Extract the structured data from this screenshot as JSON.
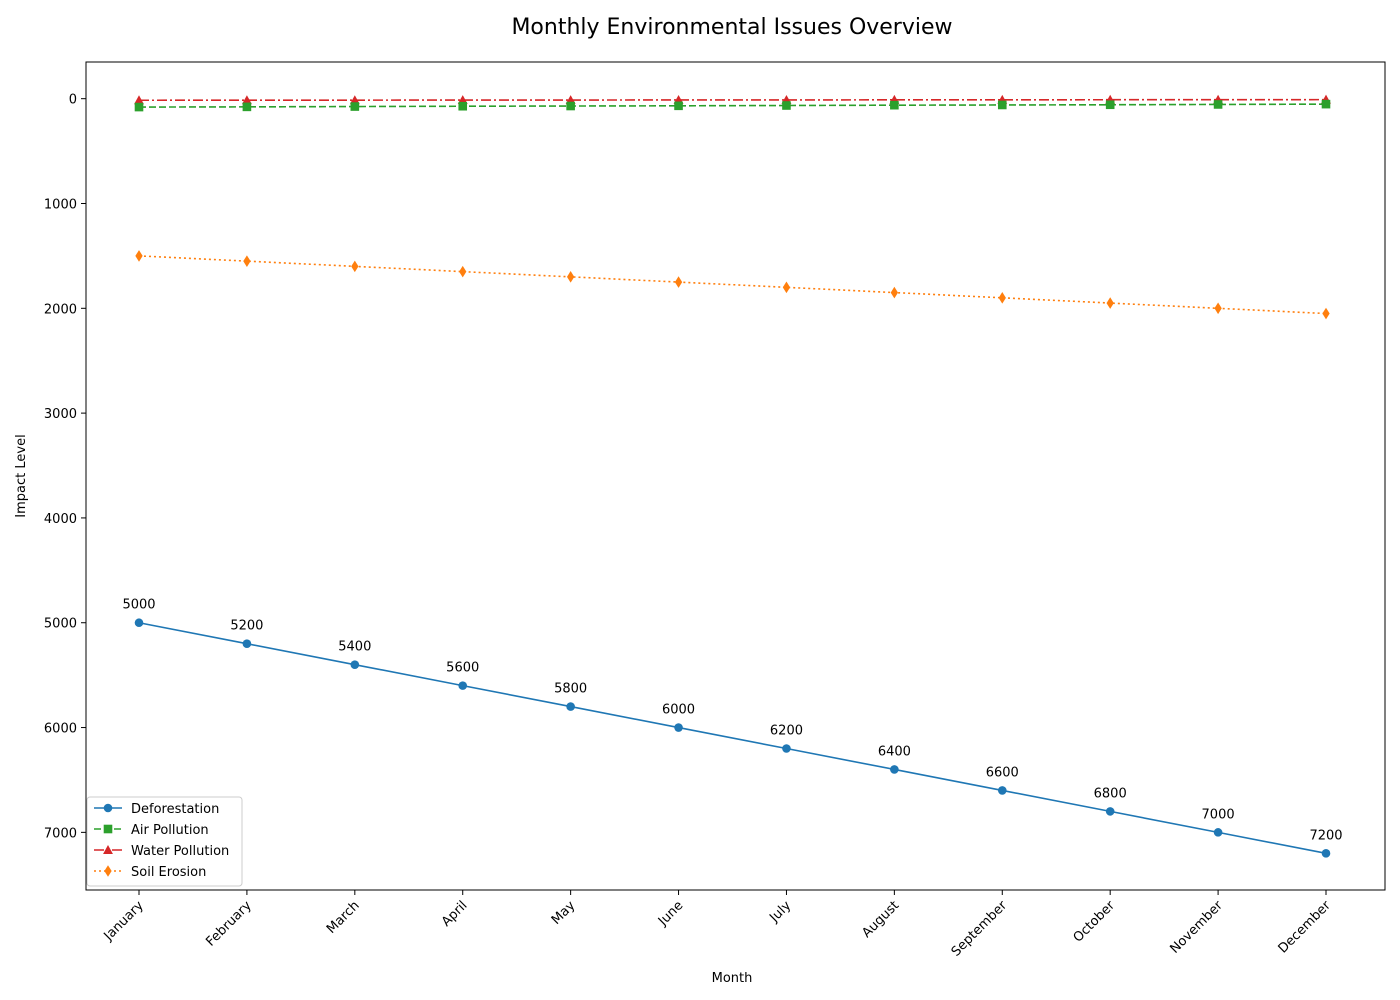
{
  "chart_data": {
    "type": "line",
    "title": "Monthly Environmental Issues Overview",
    "xlabel": "Month",
    "ylabel": "Impact Level",
    "categories": [
      "January",
      "February",
      "March",
      "April",
      "May",
      "June",
      "July",
      "August",
      "September",
      "October",
      "November",
      "December"
    ],
    "y_inverted": true,
    "ylim": [
      -350,
      7550
    ],
    "yticks": [
      0,
      1000,
      2000,
      3000,
      4000,
      5000,
      6000,
      7000
    ],
    "grid": false,
    "legend_position": "lower-left",
    "series": [
      {
        "name": "Deforestation",
        "color": "#1f77b4",
        "linestyle": "solid",
        "marker": "circle",
        "values": [
          5000,
          5200,
          5400,
          5600,
          5800,
          6000,
          6200,
          6400,
          6600,
          6800,
          7000,
          7200
        ],
        "data_labels": true
      },
      {
        "name": "Air Pollution",
        "color": "#2ca02c",
        "linestyle": "dashed",
        "marker": "square",
        "values": [
          80,
          78,
          75,
          72,
          70,
          68,
          65,
          62,
          60,
          58,
          55,
          52
        ],
        "data_labels": false
      },
      {
        "name": "Water Pollution",
        "color": "#d62728",
        "linestyle": "dashdot",
        "marker": "triangle",
        "values": [
          15,
          14,
          14,
          13,
          13,
          12,
          12,
          11,
          11,
          10,
          10,
          9
        ],
        "data_labels": false
      },
      {
        "name": "Soil Erosion",
        "color": "#ff7f0e",
        "linestyle": "dotted",
        "marker": "diamond",
        "values": [
          1500,
          1550,
          1600,
          1650,
          1700,
          1750,
          1800,
          1850,
          1900,
          1950,
          2000,
          2050
        ],
        "data_labels": false
      }
    ]
  }
}
